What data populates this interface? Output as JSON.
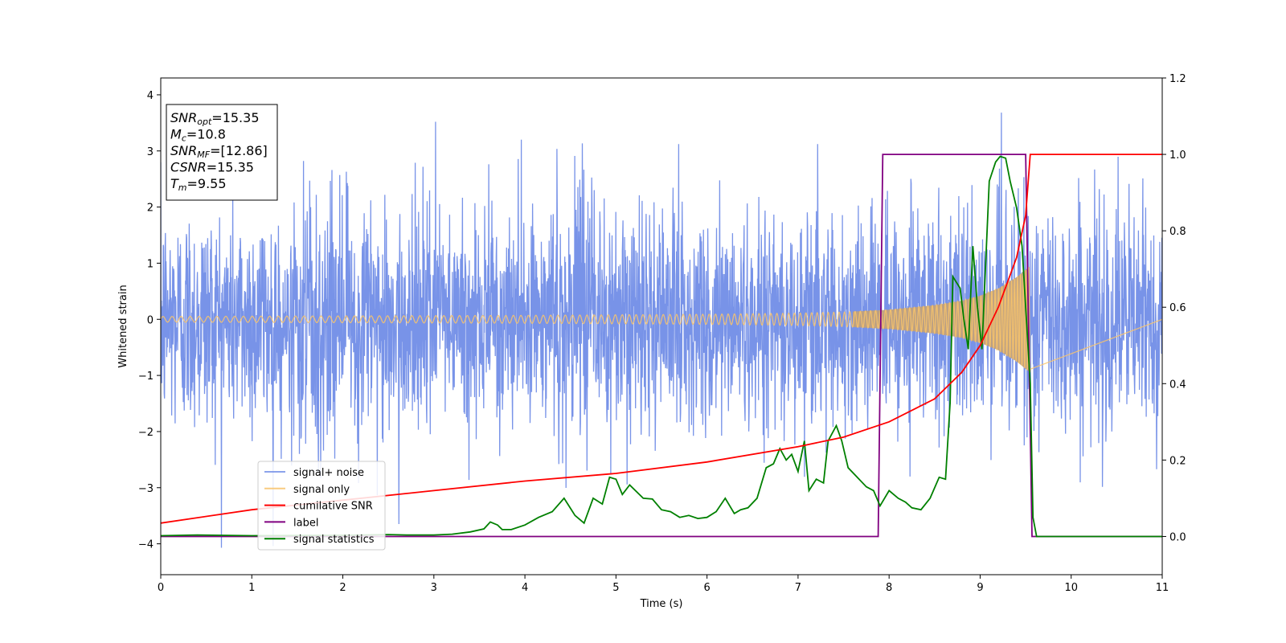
{
  "chart_data": {
    "type": "line",
    "title": "",
    "xlabel": "Time (s)",
    "ylabel": "Whitened strain",
    "xlim": [
      0,
      11
    ],
    "ylim_left": [
      -4.55,
      4.3
    ],
    "ylim_right": [
      -0.1,
      1.2
    ],
    "x_ticks": [
      0,
      1,
      2,
      3,
      4,
      5,
      6,
      7,
      8,
      9,
      10,
      11
    ],
    "y_ticks_left": [
      -4,
      -3,
      -2,
      -1,
      0,
      1,
      2,
      3,
      4
    ],
    "y_ticks_left_labels": [
      "−4",
      "−3",
      "−2",
      "−1",
      "0",
      "1",
      "2",
      "3",
      "4"
    ],
    "y_ticks_right": [
      0.0,
      0.2,
      0.4,
      0.6,
      0.8,
      1.0,
      1.2
    ],
    "y_ticks_right_labels": [
      "0.0",
      "0.2",
      "0.4",
      "0.6",
      "0.8",
      "1.0",
      "1.2"
    ],
    "grid": false,
    "legend_position": "lower-left",
    "annotation": {
      "lines": [
        {
          "sym": "SNR",
          "sub": "opt",
          "rest": "=15.35"
        },
        {
          "sym": "M",
          "sub": "c",
          "rest": "=10.8"
        },
        {
          "sym": "SNR",
          "sub": "MF",
          "rest": "=[12.86]"
        },
        {
          "sym": "CSNR",
          "sub": "",
          "rest": "=15.35"
        },
        {
          "sym": "T",
          "sub": "m",
          "rest": "=9.55"
        }
      ]
    },
    "series": [
      {
        "name": "signal+ noise",
        "axis": "left",
        "color": "#7893e8",
        "kind": "noise",
        "envelope_typical": 1.4,
        "envelope_max": 3.9,
        "range": [
          -4.15,
          3.9
        ],
        "x_range": [
          0,
          11
        ]
      },
      {
        "name": "signal only",
        "axis": "left",
        "color": "#f9c46b",
        "fill_color": "#c0a07c",
        "kind": "chirp",
        "x_range": [
          0,
          9.55
        ],
        "amplitude": {
          "x": [
            0,
            2,
            4,
            5,
            6,
            7,
            7.5,
            8,
            8.5,
            8.8,
            9.0,
            9.2,
            9.4,
            9.55
          ],
          "y": [
            0.05,
            0.06,
            0.07,
            0.08,
            0.09,
            0.11,
            0.13,
            0.17,
            0.25,
            0.33,
            0.42,
            0.55,
            0.75,
            0.95
          ]
        }
      },
      {
        "name": "cumilative SNR",
        "axis": "right",
        "color": "#ff0000",
        "x": [
          0,
          1,
          2,
          3,
          4,
          5,
          6,
          7,
          7.5,
          8,
          8.5,
          8.8,
          9.0,
          9.2,
          9.4,
          9.5,
          9.55,
          11
        ],
        "y": [
          0.035,
          0.07,
          0.095,
          0.12,
          0.145,
          0.165,
          0.195,
          0.235,
          0.26,
          0.3,
          0.36,
          0.43,
          0.5,
          0.6,
          0.73,
          0.84,
          1.0,
          1.0
        ]
      },
      {
        "name": "label",
        "axis": "right",
        "color": "#800080",
        "x": [
          0,
          7.88,
          7.93,
          9.5,
          9.57,
          11
        ],
        "y": [
          0,
          0,
          1,
          1,
          0,
          0
        ]
      },
      {
        "name": "signal statistics",
        "axis": "right",
        "color": "#008000",
        "x": [
          0,
          0.4,
          1.0,
          2.0,
          2.5,
          2.7,
          3.0,
          3.2,
          3.4,
          3.55,
          3.62,
          3.7,
          3.75,
          3.85,
          4.0,
          4.15,
          4.3,
          4.43,
          4.55,
          4.65,
          4.75,
          4.85,
          4.93,
          5.0,
          5.07,
          5.15,
          5.3,
          5.4,
          5.5,
          5.6,
          5.7,
          5.8,
          5.9,
          6.0,
          6.1,
          6.2,
          6.3,
          6.37,
          6.45,
          6.55,
          6.65,
          6.73,
          6.8,
          6.87,
          6.93,
          7.0,
          7.07,
          7.12,
          7.2,
          7.28,
          7.33,
          7.42,
          7.48,
          7.55,
          7.65,
          7.75,
          7.83,
          7.9,
          8.0,
          8.1,
          8.18,
          8.25,
          8.35,
          8.45,
          8.55,
          8.62,
          8.67,
          8.7,
          8.78,
          8.82,
          8.87,
          8.92,
          8.97,
          9.02,
          9.1,
          9.17,
          9.22,
          9.28,
          9.33,
          9.4,
          9.46,
          9.5,
          9.55,
          9.58,
          9.62,
          11
        ],
        "y": [
          0.002,
          0.004,
          0.002,
          0.003,
          0.005,
          0.004,
          0.004,
          0.006,
          0.012,
          0.02,
          0.038,
          0.03,
          0.018,
          0.018,
          0.03,
          0.05,
          0.065,
          0.1,
          0.055,
          0.035,
          0.1,
          0.085,
          0.155,
          0.15,
          0.11,
          0.135,
          0.1,
          0.098,
          0.07,
          0.065,
          0.05,
          0.055,
          0.047,
          0.05,
          0.065,
          0.1,
          0.06,
          0.07,
          0.075,
          0.1,
          0.18,
          0.19,
          0.23,
          0.2,
          0.215,
          0.17,
          0.25,
          0.12,
          0.15,
          0.14,
          0.25,
          0.29,
          0.25,
          0.18,
          0.155,
          0.13,
          0.12,
          0.08,
          0.12,
          0.1,
          0.09,
          0.075,
          0.07,
          0.1,
          0.155,
          0.15,
          0.35,
          0.68,
          0.65,
          0.57,
          0.49,
          0.76,
          0.6,
          0.49,
          0.93,
          0.98,
          0.995,
          0.99,
          0.93,
          0.86,
          0.76,
          0.6,
          0.4,
          0.05,
          0.0,
          0.0
        ]
      }
    ]
  }
}
